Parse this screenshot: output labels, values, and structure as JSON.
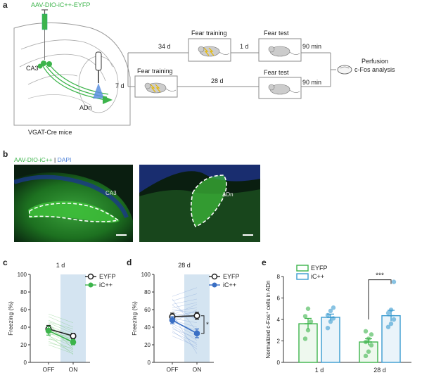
{
  "panel_letters": {
    "a": "a",
    "b": "b",
    "c": "c",
    "d": "d",
    "e": "e"
  },
  "panel_a": {
    "virus": "AAV-DIO-iC++-EYFP",
    "region_ca3": "CA3",
    "region_adn": "ADn",
    "mouse_line": "VGAT-Cre mice",
    "top_delay": "34 d",
    "bottom_delay": "7 d",
    "top_interval": "1 d",
    "bottom_interval": "28 d",
    "fear_training": "Fear training",
    "fear_test": "Fear test",
    "min_top": "90 min",
    "min_bottom": "90 min",
    "perfusion_line1": "Perfusion",
    "perfusion_line2": "c-Fos analysis",
    "colors": {
      "green": "#3cb44b",
      "blue": "#3a7bd5",
      "gray": "#888888"
    }
  },
  "panel_b": {
    "label_green": "AAV-DIO-iC++",
    "label_sep": " | ",
    "label_blue": "DAPI",
    "left_region": "CA3",
    "right_region": "ADn"
  },
  "chart_data": [
    {
      "panel": "c",
      "type": "line",
      "title": "1 d",
      "ylabel": "Freezing (%)",
      "categories": [
        "OFF",
        "ON"
      ],
      "ylim": [
        0,
        100
      ],
      "yticks": [
        "0",
        "20",
        "40",
        "60",
        "80",
        "100"
      ],
      "shaded": "ON",
      "series": [
        {
          "name": "EYFP",
          "values": [
            38,
            30
          ],
          "error": [
            4,
            3
          ],
          "color": "#222222",
          "marker": "open-circle"
        },
        {
          "name": "iC++",
          "values": [
            36,
            23
          ],
          "error": [
            5,
            3
          ],
          "color": "#3cb44b",
          "marker": "filled-circle"
        }
      ],
      "individual_lines": [
        [
          52,
          40
        ],
        [
          48,
          35
        ],
        [
          45,
          33
        ],
        [
          42,
          30
        ],
        [
          40,
          28
        ],
        [
          38,
          25
        ],
        [
          36,
          22
        ],
        [
          34,
          20
        ],
        [
          32,
          30
        ],
        [
          30,
          18
        ],
        [
          28,
          14
        ],
        [
          26,
          24
        ],
        [
          24,
          12
        ],
        [
          22,
          16
        ],
        [
          20,
          10
        ],
        [
          55,
          45
        ],
        [
          46,
          38
        ],
        [
          44,
          15
        ],
        [
          37,
          26
        ],
        [
          31,
          9
        ]
      ]
    },
    {
      "panel": "d",
      "type": "line",
      "title": "28 d",
      "ylabel": "Freezing (%)",
      "categories": [
        "OFF",
        "ON"
      ],
      "ylim": [
        0,
        100
      ],
      "yticks": [
        "0",
        "20",
        "40",
        "60",
        "80",
        "100"
      ],
      "shaded": "ON",
      "significance": "*",
      "series": [
        {
          "name": "EYFP",
          "values": [
            52,
            53
          ],
          "error": [
            4,
            4
          ],
          "color": "#222222",
          "marker": "open-circle"
        },
        {
          "name": "iC++",
          "values": [
            48,
            33
          ],
          "error": [
            4,
            5
          ],
          "color": "#3a6fc4",
          "marker": "filled-circle"
        }
      ],
      "individual_lines": [
        [
          75,
          85
        ],
        [
          70,
          78
        ],
        [
          66,
          72
        ],
        [
          62,
          68
        ],
        [
          60,
          56
        ],
        [
          58,
          62
        ],
        [
          56,
          50
        ],
        [
          54,
          66
        ],
        [
          52,
          58
        ],
        [
          50,
          45
        ],
        [
          48,
          40
        ],
        [
          46,
          36
        ],
        [
          44,
          30
        ],
        [
          42,
          25
        ],
        [
          40,
          20
        ],
        [
          38,
          28
        ],
        [
          36,
          15
        ],
        [
          34,
          22
        ],
        [
          55,
          10
        ],
        [
          65,
          48
        ],
        [
          72,
          35
        ],
        [
          45,
          60
        ],
        [
          30,
          18
        ],
        [
          50,
          52
        ]
      ]
    },
    {
      "panel": "e",
      "type": "bar",
      "ylabel": "Normalized c-Fos⁺ cells in ADn",
      "categories": [
        "1 d",
        "28 d"
      ],
      "ylim": [
        0,
        8
      ],
      "yticks": [
        "0",
        "2",
        "4",
        "6",
        "8"
      ],
      "significance": "***",
      "series": [
        {
          "name": "EYFP",
          "values": [
            3.6,
            1.9
          ],
          "error": [
            0.5,
            0.3
          ],
          "color": "#3cb44b",
          "points": [
            [
              2.2,
              3.0,
              3.8,
              4.3,
              5.0
            ],
            [
              0.6,
              1.0,
              1.6,
              1.9,
              2.2,
              2.6,
              2.9
            ]
          ]
        },
        {
          "name": "iC++",
          "values": [
            4.2,
            4.35
          ],
          "error": [
            0.3,
            0.5
          ],
          "color": "#3a9bd0",
          "points": [
            [
              3.2,
              3.8,
              4.1,
              4.4,
              4.8,
              5.1
            ],
            [
              3.3,
              3.6,
              4.0,
              4.6,
              4.9,
              7.5
            ]
          ]
        }
      ]
    }
  ]
}
